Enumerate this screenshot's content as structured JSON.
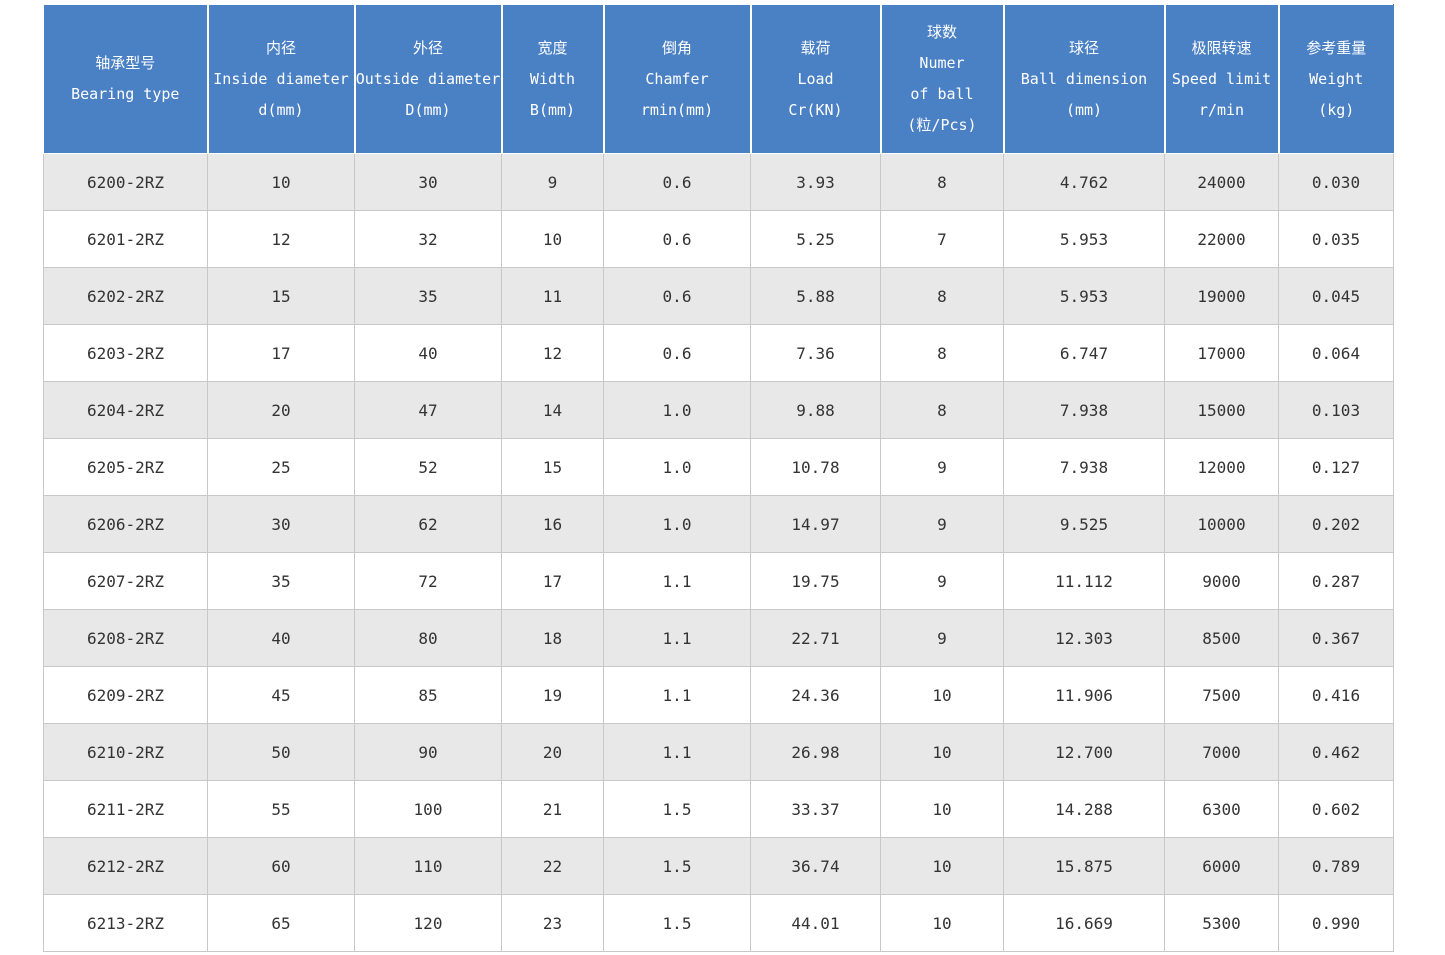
{
  "table": {
    "headers": [
      {
        "zh": "轴承型号",
        "en": "Bearing type",
        "unit": ""
      },
      {
        "zh": "内径",
        "en": "Inside diameter",
        "unit": "d(mm)"
      },
      {
        "zh": "外径",
        "en": "Outside diameter",
        "unit": "D(mm)"
      },
      {
        "zh": "宽度",
        "en": "Width",
        "unit": "B(mm)"
      },
      {
        "zh": "倒角",
        "en": "Chamfer",
        "unit": "rmin(mm)"
      },
      {
        "zh": "载荷",
        "en": "Load",
        "unit": "Cr(KN)"
      },
      {
        "zh": "球数",
        "en": "Numer",
        "unit": "of  ball",
        "extra": "(粒/Pcs)"
      },
      {
        "zh": "球径",
        "en": "Ball dimension",
        "unit": "(mm)"
      },
      {
        "zh": "极限转速",
        "en": "Speed limit",
        "unit": "r/min"
      },
      {
        "zh": "参考重量",
        "en": "Weight",
        "unit": "(kg)"
      }
    ],
    "rows": [
      [
        "6200-2RZ",
        "10",
        "30",
        "9",
        "0.6",
        "3.93",
        "8",
        "4.762",
        "24000",
        "0.030"
      ],
      [
        "6201-2RZ",
        "12",
        "32",
        "10",
        "0.6",
        "5.25",
        "7",
        "5.953",
        "22000",
        "0.035"
      ],
      [
        "6202-2RZ",
        "15",
        "35",
        "11",
        "0.6",
        "5.88",
        "8",
        "5.953",
        "19000",
        "0.045"
      ],
      [
        "6203-2RZ",
        "17",
        "40",
        "12",
        "0.6",
        "7.36",
        "8",
        "6.747",
        "17000",
        "0.064"
      ],
      [
        "6204-2RZ",
        "20",
        "47",
        "14",
        "1.0",
        "9.88",
        "8",
        "7.938",
        "15000",
        "0.103"
      ],
      [
        "6205-2RZ",
        "25",
        "52",
        "15",
        "1.0",
        "10.78",
        "9",
        "7.938",
        "12000",
        "0.127"
      ],
      [
        "6206-2RZ",
        "30",
        "62",
        "16",
        "1.0",
        "14.97",
        "9",
        "9.525",
        "10000",
        "0.202"
      ],
      [
        "6207-2RZ",
        "35",
        "72",
        "17",
        "1.1",
        "19.75",
        "9",
        "11.112",
        "9000",
        "0.287"
      ],
      [
        "6208-2RZ",
        "40",
        "80",
        "18",
        "1.1",
        "22.71",
        "9",
        "12.303",
        "8500",
        "0.367"
      ],
      [
        "6209-2RZ",
        "45",
        "85",
        "19",
        "1.1",
        "24.36",
        "10",
        "11.906",
        "7500",
        "0.416"
      ],
      [
        "6210-2RZ",
        "50",
        "90",
        "20",
        "1.1",
        "26.98",
        "10",
        "12.700",
        "7000",
        "0.462"
      ],
      [
        "6211-2RZ",
        "55",
        "100",
        "21",
        "1.5",
        "33.37",
        "10",
        "14.288",
        "6300",
        "0.602"
      ],
      [
        "6212-2RZ",
        "60",
        "110",
        "22",
        "1.5",
        "36.74",
        "10",
        "15.875",
        "6000",
        "0.789"
      ],
      [
        "6213-2RZ",
        "65",
        "120",
        "23",
        "1.5",
        "44.01",
        "10",
        "16.669",
        "5300",
        "0.990"
      ]
    ]
  },
  "colors": {
    "header_bg": "#4a80c4",
    "header_text": "#ffffff",
    "row_odd_bg": "#e8e8e8",
    "row_even_bg": "#ffffff",
    "cell_text": "#333333"
  }
}
